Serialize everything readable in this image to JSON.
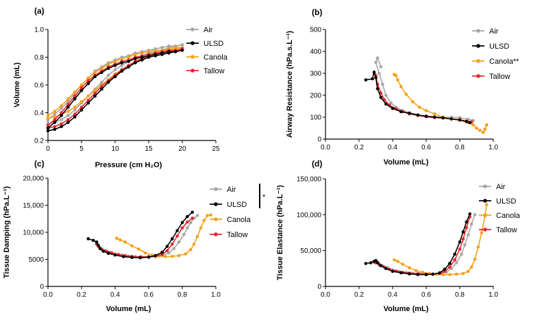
{
  "colors": {
    "Air": "#a6a6a6",
    "ULSD": "#000000",
    "Canola": "#f5a01a",
    "Tallow": "#e8262b"
  },
  "chart_data": [
    {
      "panel_label": "(a)",
      "type": "line",
      "xlabel": "Pressure (cm H₂O)",
      "ylabel": "Volume (mL)",
      "xlim": [
        0,
        25
      ],
      "ylim": [
        0.2,
        1.0
      ],
      "xticks": [
        "0",
        "5",
        "10",
        "15",
        "20",
        "25"
      ],
      "yticks": [
        "0.2",
        "0.4",
        "0.6",
        "0.8",
        "1.0"
      ],
      "legend": [
        "Air",
        "ULSD",
        "Canola",
        "Tallow"
      ],
      "legend_position": "right",
      "series": [
        {
          "name": "Air",
          "inflation": {
            "x": [
              0,
              1,
              2,
              3,
              4,
              5,
              6,
              7,
              8,
              9,
              10,
              11,
              12,
              13,
              14,
              15,
              16,
              17,
              18,
              19,
              20
            ],
            "y": [
              0.32,
              0.33,
              0.35,
              0.38,
              0.42,
              0.47,
              0.52,
              0.57,
              0.62,
              0.67,
              0.71,
              0.74,
              0.77,
              0.79,
              0.81,
              0.83,
              0.84,
              0.85,
              0.87,
              0.88,
              0.89
            ]
          },
          "deflation": {
            "x": [
              20,
              19,
              18,
              17,
              16,
              15,
              14,
              13,
              12,
              11,
              10,
              9,
              8,
              7,
              6,
              5,
              4,
              3,
              2,
              1,
              0
            ],
            "y": [
              0.89,
              0.88,
              0.88,
              0.87,
              0.86,
              0.85,
              0.84,
              0.83,
              0.81,
              0.8,
              0.78,
              0.76,
              0.73,
              0.7,
              0.65,
              0.6,
              0.54,
              0.48,
              0.43,
              0.39,
              0.35
            ]
          }
        },
        {
          "name": "ULSD",
          "inflation": {
            "x": [
              0,
              1,
              2,
              3,
              4,
              5,
              6,
              7,
              8,
              9,
              10,
              11,
              12,
              13,
              14,
              15,
              16,
              17,
              18,
              19,
              20
            ],
            "y": [
              0.27,
              0.28,
              0.3,
              0.33,
              0.37,
              0.42,
              0.47,
              0.52,
              0.57,
              0.62,
              0.66,
              0.7,
              0.73,
              0.76,
              0.78,
              0.8,
              0.81,
              0.82,
              0.83,
              0.84,
              0.85
            ]
          },
          "deflation": {
            "x": [
              20,
              19,
              18,
              17,
              16,
              15,
              14,
              13,
              12,
              11,
              10,
              9,
              8,
              7,
              6,
              5,
              4,
              3,
              2,
              1,
              0
            ],
            "y": [
              0.85,
              0.84,
              0.84,
              0.83,
              0.82,
              0.81,
              0.8,
              0.79,
              0.77,
              0.76,
              0.74,
              0.72,
              0.69,
              0.66,
              0.61,
              0.56,
              0.5,
              0.44,
              0.38,
              0.33,
              0.29
            ]
          }
        },
        {
          "name": "Canola",
          "inflation": {
            "x": [
              0,
              1,
              2,
              3,
              4,
              5,
              6,
              7,
              8,
              9,
              10,
              11,
              12,
              13,
              14,
              15,
              16,
              17,
              18,
              19,
              20
            ],
            "y": [
              0.36,
              0.37,
              0.39,
              0.41,
              0.44,
              0.48,
              0.52,
              0.56,
              0.6,
              0.64,
              0.68,
              0.71,
              0.74,
              0.77,
              0.79,
              0.81,
              0.83,
              0.84,
              0.85,
              0.86,
              0.87
            ]
          },
          "deflation": {
            "x": [
              20,
              19,
              18,
              17,
              16,
              15,
              14,
              13,
              12,
              11,
              10,
              9,
              8,
              7,
              6,
              5,
              4,
              3,
              2,
              1,
              0
            ],
            "y": [
              0.87,
              0.87,
              0.86,
              0.85,
              0.85,
              0.84,
              0.83,
              0.82,
              0.8,
              0.79,
              0.77,
              0.75,
              0.72,
              0.69,
              0.65,
              0.6,
              0.55,
              0.5,
              0.45,
              0.41,
              0.38
            ]
          }
        },
        {
          "name": "Tallow",
          "inflation": {
            "x": [
              0,
              1,
              2,
              3,
              4,
              5,
              6,
              7,
              8,
              9,
              10,
              11,
              12,
              13,
              14,
              15,
              16,
              17,
              18,
              19,
              20
            ],
            "y": [
              0.29,
              0.3,
              0.32,
              0.35,
              0.39,
              0.44,
              0.49,
              0.54,
              0.59,
              0.63,
              0.67,
              0.71,
              0.74,
              0.77,
              0.79,
              0.81,
              0.82,
              0.83,
              0.84,
              0.85,
              0.86
            ]
          },
          "deflation": {
            "x": [
              20,
              19,
              18,
              17,
              16,
              15,
              14,
              13,
              12,
              11,
              10,
              9,
              8,
              7,
              6,
              5,
              4,
              3,
              2,
              1,
              0
            ],
            "y": [
              0.86,
              0.85,
              0.85,
              0.84,
              0.83,
              0.82,
              0.81,
              0.8,
              0.78,
              0.77,
              0.75,
              0.73,
              0.7,
              0.67,
              0.63,
              0.58,
              0.52,
              0.46,
              0.4,
              0.35,
              0.31
            ]
          }
        }
      ]
    },
    {
      "panel_label": "(b)",
      "type": "line",
      "xlabel": "Volume (mL)",
      "ylabel": "Airway Resistance (hPa.s.L⁻¹)",
      "xlim": [
        0.0,
        1.0
      ],
      "ylim": [
        0,
        500
      ],
      "xticks": [
        "0.0",
        "0.2",
        "0.4",
        "0.6",
        "0.8",
        "1.0"
      ],
      "yticks": [
        "0",
        "100",
        "200",
        "300",
        "400",
        "500"
      ],
      "legend": [
        "Air",
        "ULSD",
        "Canola**",
        "Tallow"
      ],
      "legend_position": "right",
      "series": [
        {
          "name": "Air",
          "x": [
            0.33,
            0.31,
            0.3,
            0.32,
            0.34,
            0.36,
            0.39,
            0.42,
            0.46,
            0.5,
            0.55,
            0.6,
            0.65,
            0.7,
            0.75,
            0.8,
            0.85,
            0.88
          ],
          "y": [
            330,
            370,
            350,
            300,
            250,
            200,
            165,
            145,
            130,
            120,
            110,
            105,
            102,
            100,
            100,
            98,
            90,
            85
          ]
        },
        {
          "name": "ULSD",
          "x": [
            0.24,
            0.28,
            0.29,
            0.3,
            0.31,
            0.33,
            0.36,
            0.4,
            0.45,
            0.5,
            0.55,
            0.6,
            0.65,
            0.7,
            0.75,
            0.8,
            0.84,
            0.86
          ],
          "y": [
            270,
            275,
            305,
            280,
            230,
            190,
            160,
            140,
            125,
            118,
            110,
            104,
            100,
            97,
            92,
            88,
            80,
            75
          ]
        },
        {
          "name": "Canola",
          "x": [
            0.41,
            0.42,
            0.43,
            0.45,
            0.48,
            0.52,
            0.56,
            0.6,
            0.65,
            0.7,
            0.75,
            0.8,
            0.85,
            0.88,
            0.9,
            0.92,
            0.94,
            0.95,
            0.96
          ],
          "y": [
            295,
            290,
            270,
            240,
            205,
            170,
            145,
            130,
            115,
            100,
            92,
            85,
            75,
            65,
            50,
            40,
            30,
            45,
            65
          ]
        },
        {
          "name": "Tallow",
          "x": [
            0.29,
            0.3,
            0.31,
            0.33,
            0.35,
            0.38,
            0.42,
            0.46,
            0.5,
            0.55,
            0.6,
            0.65,
            0.7,
            0.75,
            0.8,
            0.84,
            0.87
          ],
          "y": [
            300,
            290,
            250,
            210,
            180,
            155,
            138,
            125,
            115,
            108,
            102,
            98,
            96,
            92,
            88,
            82,
            78
          ]
        }
      ]
    },
    {
      "panel_label": "(c)",
      "type": "line",
      "xlabel": "Volume (mL)",
      "ylabel": "Tissue Damping (hPa.L⁻¹)",
      "xlim": [
        0.0,
        1.0
      ],
      "ylim": [
        0,
        20000
      ],
      "xticks": [
        "0.0",
        "0.2",
        "0.4",
        "0.6",
        "0.8",
        "1.0"
      ],
      "yticks": [
        "0",
        "5000",
        "10,000",
        "15,000",
        "20,000"
      ],
      "legend": [
        "Air",
        "ULSD",
        "Canola",
        "Tallow"
      ],
      "legend_position": "right",
      "significance_mark": "*",
      "series": [
        {
          "name": "Air",
          "x": [
            0.31,
            0.32,
            0.34,
            0.37,
            0.4,
            0.44,
            0.48,
            0.52,
            0.56,
            0.6,
            0.64,
            0.68,
            0.72,
            0.75,
            0.78,
            0.81,
            0.83,
            0.85,
            0.87,
            0.89
          ],
          "y": [
            7200,
            6800,
            6600,
            6300,
            6000,
            5800,
            5600,
            5500,
            5450,
            5400,
            5500,
            5700,
            6200,
            7000,
            8200,
            9600,
            10800,
            11800,
            12600,
            13100
          ]
        },
        {
          "name": "ULSD",
          "x": [
            0.24,
            0.27,
            0.29,
            0.3,
            0.31,
            0.33,
            0.36,
            0.4,
            0.45,
            0.5,
            0.55,
            0.6,
            0.64,
            0.68,
            0.71,
            0.74,
            0.77,
            0.8,
            0.83,
            0.86
          ],
          "y": [
            8800,
            8500,
            8200,
            7600,
            7000,
            6500,
            6100,
            5800,
            5500,
            5350,
            5300,
            5400,
            5700,
            6300,
            7400,
            8800,
            10300,
            11800,
            12900,
            13700
          ]
        },
        {
          "name": "Canola",
          "x": [
            0.41,
            0.43,
            0.46,
            0.5,
            0.54,
            0.58,
            0.62,
            0.66,
            0.7,
            0.74,
            0.78,
            0.82,
            0.85,
            0.87,
            0.89,
            0.91,
            0.93,
            0.95,
            0.97
          ],
          "y": [
            8900,
            8600,
            8200,
            7500,
            6900,
            6200,
            5800,
            5600,
            5500,
            5550,
            5700,
            6000,
            6800,
            7800,
            9200,
            10800,
            12200,
            13100,
            13200
          ]
        },
        {
          "name": "Tallow",
          "x": [
            0.29,
            0.3,
            0.32,
            0.35,
            0.38,
            0.42,
            0.46,
            0.5,
            0.55,
            0.6,
            0.64,
            0.68,
            0.71,
            0.74,
            0.77,
            0.8,
            0.83,
            0.86
          ],
          "y": [
            7800,
            7400,
            6900,
            6500,
            6200,
            5900,
            5700,
            5550,
            5450,
            5500,
            5600,
            5900,
            6600,
            7800,
            9300,
            10800,
            11900,
            12600
          ]
        }
      ]
    },
    {
      "panel_label": "(d)",
      "type": "line",
      "xlabel": "Volume (mL)",
      "ylabel": "Tissue Elastance (hPa.L⁻¹)",
      "xlim": [
        0.0,
        1.0
      ],
      "ylim": [
        0,
        150000
      ],
      "xticks": [
        "0.0",
        "0.2",
        "0.4",
        "0.6",
        "0.8",
        "1.0"
      ],
      "yticks": [
        "0",
        "50,000",
        "100,000",
        "150,000"
      ],
      "legend": [
        "Air",
        "ULSD",
        "Canola",
        "Tallow"
      ],
      "legend_position": "right",
      "series": [
        {
          "name": "Air",
          "x": [
            0.31,
            0.32,
            0.34,
            0.37,
            0.4,
            0.44,
            0.48,
            0.52,
            0.56,
            0.6,
            0.64,
            0.68,
            0.72,
            0.75,
            0.78,
            0.81,
            0.83,
            0.85,
            0.87,
            0.89
          ],
          "y": [
            34000,
            32000,
            29000,
            26000,
            23000,
            21000,
            19500,
            18500,
            18000,
            17500,
            17500,
            18000,
            20000,
            25000,
            33000,
            45000,
            58000,
            72000,
            87000,
            100000
          ]
        },
        {
          "name": "ULSD",
          "x": [
            0.24,
            0.27,
            0.29,
            0.3,
            0.31,
            0.33,
            0.36,
            0.4,
            0.45,
            0.5,
            0.55,
            0.6,
            0.64,
            0.68,
            0.71,
            0.74,
            0.77,
            0.8,
            0.82,
            0.84,
            0.86
          ],
          "y": [
            32000,
            33000,
            35000,
            36000,
            33000,
            29000,
            25000,
            21000,
            19000,
            17500,
            16500,
            16500,
            17000,
            19000,
            24000,
            32000,
            45000,
            62000,
            76000,
            90000,
            101000
          ]
        },
        {
          "name": "Canola",
          "x": [
            0.41,
            0.43,
            0.46,
            0.5,
            0.54,
            0.58,
            0.62,
            0.66,
            0.7,
            0.74,
            0.78,
            0.82,
            0.85,
            0.87,
            0.89,
            0.91,
            0.93,
            0.95,
            0.96
          ],
          "y": [
            37000,
            35000,
            31000,
            26000,
            22000,
            19500,
            18000,
            17000,
            16500,
            16500,
            17000,
            18000,
            21000,
            27000,
            38000,
            55000,
            75000,
            98000,
            114000
          ]
        },
        {
          "name": "Tallow",
          "x": [
            0.29,
            0.3,
            0.32,
            0.35,
            0.38,
            0.42,
            0.46,
            0.5,
            0.55,
            0.6,
            0.64,
            0.68,
            0.71,
            0.74,
            0.77,
            0.8,
            0.82,
            0.84,
            0.86
          ],
          "y": [
            34000,
            33000,
            30000,
            27000,
            24000,
            21500,
            19500,
            18500,
            17500,
            17000,
            17000,
            18000,
            21000,
            27000,
            37000,
            52000,
            66000,
            82000,
            97000
          ]
        }
      ]
    }
  ]
}
